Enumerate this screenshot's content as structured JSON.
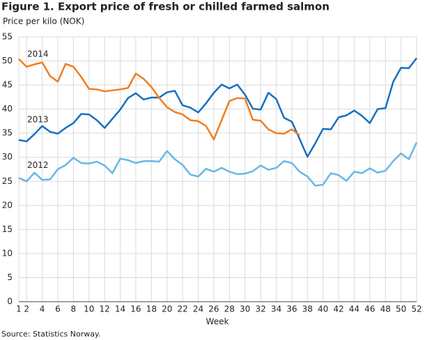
{
  "chart_data": {
    "type": "line",
    "title": "Figure 1. Export price of fresh or chilled farmed salmon",
    "y_label": "Price per kilo (NOK)",
    "x_label": "Week",
    "source": "Source: Statistics Norway.",
    "x": [
      1,
      2,
      3,
      4,
      5,
      6,
      7,
      8,
      9,
      10,
      11,
      12,
      13,
      14,
      15,
      16,
      17,
      18,
      19,
      20,
      21,
      22,
      23,
      24,
      25,
      26,
      27,
      28,
      29,
      30,
      31,
      32,
      33,
      34,
      35,
      36,
      37,
      38,
      39,
      40,
      41,
      42,
      43,
      44,
      45,
      46,
      47,
      48,
      49,
      50,
      51,
      52
    ],
    "xlim": [
      1,
      52
    ],
    "xticks": [
      1,
      2,
      4,
      6,
      8,
      10,
      12,
      14,
      16,
      18,
      20,
      22,
      24,
      26,
      28,
      30,
      32,
      34,
      36,
      38,
      40,
      42,
      44,
      46,
      48,
      50,
      52
    ],
    "ylim": [
      0,
      55
    ],
    "yticks": [
      0,
      5,
      10,
      15,
      20,
      25,
      30,
      35,
      40,
      45,
      50,
      55
    ],
    "grid": true,
    "series": [
      {
        "name": "2013",
        "color": "#1570c2",
        "values": [
          33.6,
          33.3,
          34.8,
          36.5,
          35.3,
          34.9,
          36.1,
          37.1,
          39.0,
          38.9,
          37.7,
          36.1,
          38.0,
          39.9,
          42.3,
          43.3,
          42.0,
          42.4,
          42.4,
          43.5,
          43.8,
          40.8,
          40.3,
          39.3,
          41.2,
          43.4,
          45.1,
          44.3,
          45.1,
          43.0,
          40.1,
          39.9,
          43.4,
          42.1,
          38.2,
          37.4,
          33.8,
          30.1,
          32.9,
          35.9,
          35.8,
          38.3,
          38.7,
          39.7,
          38.6,
          37.1,
          40.0,
          40.2,
          45.7,
          48.6,
          48.5,
          50.6
        ]
      },
      {
        "name": "2014",
        "color": "#f07d1e",
        "values": [
          50.4,
          48.8,
          49.3,
          49.7,
          46.9,
          45.7,
          49.4,
          48.8,
          46.7,
          44.2,
          44.1,
          43.7,
          43.9,
          44.1,
          44.4,
          47.4,
          46.3,
          44.6,
          42.3,
          40.4,
          39.4,
          38.9,
          37.7,
          37.5,
          36.5,
          33.7,
          37.7,
          41.7,
          42.3,
          42.2,
          37.8,
          37.6,
          35.8,
          35.0,
          34.9,
          35.8,
          34.6,
          null,
          null,
          null,
          null,
          null,
          null,
          null,
          null,
          null,
          null,
          null,
          null,
          null,
          null,
          null
        ]
      },
      {
        "name": "2012",
        "color": "#66b8e6",
        "values": [
          25.7,
          25.0,
          26.8,
          25.3,
          25.4,
          27.5,
          28.4,
          29.9,
          28.8,
          28.7,
          29.1,
          28.3,
          26.7,
          29.7,
          29.4,
          28.8,
          29.2,
          29.2,
          29.1,
          31.3,
          29.6,
          28.4,
          26.4,
          26.0,
          27.6,
          27.0,
          27.8,
          27.0,
          26.5,
          26.6,
          27.1,
          28.3,
          27.4,
          27.8,
          29.2,
          28.8,
          27.0,
          26.0,
          24.1,
          24.3,
          26.7,
          26.3,
          25.1,
          27.0,
          26.7,
          27.7,
          26.8,
          27.2,
          29.2,
          30.8,
          29.6,
          33.1
        ]
      }
    ]
  }
}
